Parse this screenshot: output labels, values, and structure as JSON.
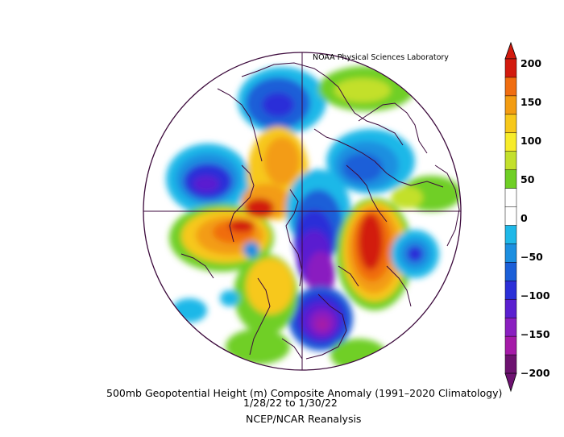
{
  "credit": "NOAA Physical Sciences Laboratory",
  "caption": {
    "line1": "500mb Geopotential Height (m) Composite Anomaly (1991–2020 Climatology)",
    "line2": "1/28/22   to 1/30/22",
    "line3": "NCEP/NCAR Reanalysis"
  },
  "colorbar": {
    "labels": [
      "200",
      "150",
      "100",
      "50",
      "0",
      "−50",
      "−100",
      "−150",
      "−200"
    ],
    "colors": [
      "#d21a0e",
      "#f06d10",
      "#f39c12",
      "#f7c81a",
      "#f7ec2a",
      "#c3e02c",
      "#6fcf25",
      "#ffffff",
      "#ffffff",
      "#1fb8e8",
      "#1c8fe0",
      "#1b5fd8",
      "#2b2fd8",
      "#5a1fd0",
      "#8a1fc0",
      "#a51aa8",
      "#6d1270"
    ]
  },
  "map": {
    "projection": "north-polar-stereographic",
    "palette": {
      "red": "#d21a0e",
      "orange_red": "#f06d10",
      "orange": "#f39c12",
      "yellow": "#f7c81a",
      "light_yellow": "#f7ec2a",
      "yellow_green": "#c3e02c",
      "green": "#6fcf25",
      "cyan": "#1fb8e8",
      "light_blue": "#1c8fe0",
      "blue": "#1b5fd8",
      "deep_blue": "#2b2fd8",
      "indigo": "#5a1fd0",
      "violet": "#8a1fc0",
      "purple": "#a51aa8",
      "dark_purple": "#6d1270",
      "coast": "#3c0a3c"
    }
  }
}
